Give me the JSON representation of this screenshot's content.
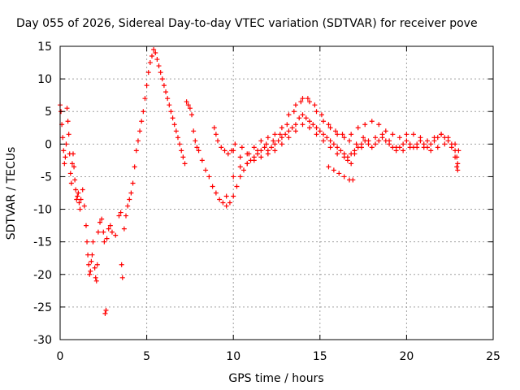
{
  "chart_data": {
    "type": "scatter",
    "title": "Day 055 of 2026, Sidereal Day-to-day VTEC variation (SDTVAR) for receiver pove",
    "xlabel": "GPS time / hours",
    "ylabel": "SDTVAR / TECUs",
    "xlim": [
      0,
      25
    ],
    "ylim": [
      -30,
      15
    ],
    "x_ticks": [
      0,
      5,
      10,
      15,
      20,
      25
    ],
    "y_ticks": [
      -30,
      -25,
      -20,
      -15,
      -10,
      -5,
      0,
      5,
      10,
      15
    ],
    "x_tick_labels": [
      "0",
      "5",
      "10",
      "15",
      "20",
      "25"
    ],
    "y_tick_labels": [
      "-30",
      "-25",
      "-20",
      "-15",
      "-10",
      "-5",
      "0",
      "5",
      "10",
      "15"
    ],
    "grid": true,
    "marker": "plus",
    "color": "#ff0000",
    "series": [
      {
        "name": "SDTVAR",
        "points": [
          [
            0.0,
            6.0
          ],
          [
            0.05,
            5.0
          ],
          [
            0.1,
            3.0
          ],
          [
            0.15,
            1.0
          ],
          [
            0.2,
            -1.0
          ],
          [
            0.25,
            -3.0
          ],
          [
            0.3,
            -2.0
          ],
          [
            0.35,
            0.0
          ],
          [
            0.4,
            5.5
          ],
          [
            0.45,
            3.5
          ],
          [
            0.5,
            1.5
          ],
          [
            0.55,
            -1.5
          ],
          [
            0.6,
            -4.5
          ],
          [
            0.65,
            -6.0
          ],
          [
            0.7,
            -3.0
          ],
          [
            0.75,
            -1.5
          ],
          [
            0.8,
            -3.5
          ],
          [
            0.85,
            -5.5
          ],
          [
            0.9,
            -7.0
          ],
          [
            0.95,
            -8.5
          ],
          [
            1.0,
            -8.0
          ],
          [
            1.05,
            -7.5
          ],
          [
            1.1,
            -9.0
          ],
          [
            1.15,
            -10.0
          ],
          [
            1.2,
            -8.5
          ],
          [
            1.3,
            -7.0
          ],
          [
            1.4,
            -9.5
          ],
          [
            1.5,
            -12.5
          ],
          [
            1.55,
            -15.0
          ],
          [
            1.6,
            -17.0
          ],
          [
            1.65,
            -18.5
          ],
          [
            1.7,
            -20.0
          ],
          [
            1.75,
            -19.5
          ],
          [
            1.8,
            -18.0
          ],
          [
            1.85,
            -17.0
          ],
          [
            1.9,
            -15.0
          ],
          [
            2.0,
            -19.0
          ],
          [
            2.05,
            -20.5
          ],
          [
            2.1,
            -21.0
          ],
          [
            2.15,
            -18.5
          ],
          [
            2.2,
            -13.5
          ],
          [
            2.3,
            -12.0
          ],
          [
            2.4,
            -11.5
          ],
          [
            2.5,
            -13.5
          ],
          [
            2.55,
            -15.0
          ],
          [
            2.6,
            -26.0
          ],
          [
            2.65,
            -25.5
          ],
          [
            2.7,
            -14.5
          ],
          [
            2.8,
            -13.0
          ],
          [
            2.9,
            -12.5
          ],
          [
            3.0,
            -13.5
          ],
          [
            3.2,
            -14.0
          ],
          [
            3.4,
            -11.0
          ],
          [
            3.5,
            -10.5
          ],
          [
            3.55,
            -18.5
          ],
          [
            3.6,
            -20.5
          ],
          [
            3.7,
            -13.0
          ],
          [
            3.8,
            -11.0
          ],
          [
            3.9,
            -9.5
          ],
          [
            4.0,
            -8.5
          ],
          [
            4.1,
            -7.5
          ],
          [
            4.2,
            -6.0
          ],
          [
            4.3,
            -3.5
          ],
          [
            4.4,
            -1.0
          ],
          [
            4.5,
            0.5
          ],
          [
            4.6,
            2.0
          ],
          [
            4.7,
            3.5
          ],
          [
            4.8,
            5.0
          ],
          [
            4.9,
            7.0
          ],
          [
            5.0,
            9.0
          ],
          [
            5.1,
            11.0
          ],
          [
            5.2,
            12.5
          ],
          [
            5.3,
            13.5
          ],
          [
            5.4,
            14.5
          ],
          [
            5.5,
            14.0
          ],
          [
            5.6,
            13.0
          ],
          [
            5.7,
            12.0
          ],
          [
            5.8,
            11.0
          ],
          [
            5.9,
            10.0
          ],
          [
            6.0,
            9.0
          ],
          [
            6.1,
            8.0
          ],
          [
            6.2,
            7.0
          ],
          [
            6.3,
            6.0
          ],
          [
            6.4,
            5.0
          ],
          [
            6.5,
            4.0
          ],
          [
            6.6,
            3.0
          ],
          [
            6.7,
            2.0
          ],
          [
            6.8,
            1.0
          ],
          [
            6.9,
            0.0
          ],
          [
            7.0,
            -1.0
          ],
          [
            7.1,
            -2.0
          ],
          [
            7.2,
            -3.0
          ],
          [
            7.3,
            6.5
          ],
          [
            7.4,
            6.0
          ],
          [
            7.5,
            5.5
          ],
          [
            7.6,
            4.5
          ],
          [
            7.7,
            2.0
          ],
          [
            7.8,
            0.5
          ],
          [
            7.9,
            -0.5
          ],
          [
            8.0,
            -1.0
          ],
          [
            8.2,
            -2.5
          ],
          [
            8.4,
            -4.0
          ],
          [
            8.6,
            -5.0
          ],
          [
            8.8,
            -6.5
          ],
          [
            9.0,
            -7.5
          ],
          [
            9.2,
            -8.5
          ],
          [
            9.4,
            -9.0
          ],
          [
            9.6,
            -9.5
          ],
          [
            9.8,
            -9.0
          ],
          [
            10.0,
            -8.0
          ],
          [
            10.2,
            -6.5
          ],
          [
            10.4,
            -5.0
          ],
          [
            10.6,
            -4.0
          ],
          [
            10.8,
            -3.0
          ],
          [
            11.0,
            -2.5
          ],
          [
            11.2,
            -2.0
          ],
          [
            11.4,
            -1.5
          ],
          [
            11.6,
            -1.0
          ],
          [
            11.8,
            -0.5
          ],
          [
            12.0,
            -1.0
          ],
          [
            12.2,
            -0.5
          ],
          [
            12.4,
            0.0
          ],
          [
            12.6,
            0.5
          ],
          [
            12.8,
            1.0
          ],
          [
            13.0,
            1.5
          ],
          [
            13.2,
            2.0
          ],
          [
            13.4,
            2.5
          ],
          [
            13.6,
            3.0
          ],
          [
            13.8,
            4.0
          ],
          [
            14.0,
            4.5
          ],
          [
            14.2,
            4.0
          ],
          [
            14.4,
            3.5
          ],
          [
            14.6,
            3.0
          ],
          [
            14.8,
            2.5
          ],
          [
            15.0,
            2.0
          ],
          [
            15.2,
            1.5
          ],
          [
            15.4,
            1.0
          ],
          [
            15.6,
            0.5
          ],
          [
            15.8,
            0.0
          ],
          [
            16.0,
            -0.5
          ],
          [
            16.2,
            -1.0
          ],
          [
            16.4,
            -1.5
          ],
          [
            16.6,
            -2.0
          ],
          [
            16.8,
            -1.5
          ],
          [
            17.0,
            -1.0
          ],
          [
            17.2,
            -0.5
          ],
          [
            17.4,
            0.0
          ],
          [
            17.6,
            0.5
          ],
          [
            17.8,
            0.0
          ],
          [
            18.0,
            -0.5
          ],
          [
            18.2,
            0.0
          ],
          [
            18.4,
            0.5
          ],
          [
            18.6,
            1.0
          ],
          [
            18.8,
            0.5
          ],
          [
            19.0,
            0.0
          ],
          [
            19.2,
            -0.5
          ],
          [
            19.4,
            -1.0
          ],
          [
            19.6,
            -0.5
          ],
          [
            19.8,
            0.0
          ],
          [
            20.0,
            0.5
          ],
          [
            20.2,
            0.0
          ],
          [
            20.4,
            -0.5
          ],
          [
            20.6,
            0.0
          ],
          [
            20.8,
            0.5
          ],
          [
            21.0,
            0.0
          ],
          [
            21.2,
            -0.5
          ],
          [
            21.4,
            0.0
          ],
          [
            21.6,
            0.5
          ],
          [
            21.8,
            1.0
          ],
          [
            22.0,
            1.5
          ],
          [
            22.2,
            1.0
          ],
          [
            22.4,
            0.5
          ],
          [
            22.6,
            0.0
          ],
          [
            22.8,
            -1.0
          ],
          [
            22.9,
            -2.0
          ],
          [
            22.95,
            -3.0
          ],
          [
            10.0,
            -1.0
          ],
          [
            10.4,
            -2.0
          ],
          [
            10.8,
            -1.5
          ],
          [
            11.2,
            -0.5
          ],
          [
            11.6,
            0.5
          ],
          [
            12.0,
            1.0
          ],
          [
            12.4,
            1.5
          ],
          [
            12.8,
            2.5
          ],
          [
            13.2,
            4.5
          ],
          [
            13.6,
            6.0
          ],
          [
            14.0,
            7.0
          ],
          [
            14.4,
            6.5
          ],
          [
            14.8,
            5.0
          ],
          [
            15.2,
            3.5
          ],
          [
            15.6,
            2.5
          ],
          [
            16.0,
            1.5
          ],
          [
            16.4,
            1.0
          ],
          [
            16.8,
            1.5
          ],
          [
            17.2,
            2.5
          ],
          [
            17.6,
            3.0
          ],
          [
            18.0,
            3.5
          ],
          [
            18.4,
            3.0
          ],
          [
            18.8,
            2.0
          ],
          [
            19.2,
            1.5
          ],
          [
            19.6,
            1.0
          ],
          [
            20.0,
            1.5
          ],
          [
            20.4,
            1.5
          ],
          [
            20.8,
            1.0
          ],
          [
            21.2,
            0.5
          ],
          [
            21.6,
            1.0
          ],
          [
            22.0,
            1.5
          ],
          [
            22.4,
            1.0
          ],
          [
            22.8,
            0.0
          ],
          [
            23.0,
            -1.0
          ],
          [
            9.6,
            -8.0
          ],
          [
            10.0,
            -5.0
          ],
          [
            10.4,
            -3.5
          ],
          [
            10.8,
            -3.0
          ],
          [
            11.2,
            -2.5
          ],
          [
            11.6,
            -2.0
          ],
          [
            12.0,
            -1.5
          ],
          [
            12.4,
            -1.0
          ],
          [
            12.8,
            0.0
          ],
          [
            13.2,
            1.0
          ],
          [
            13.6,
            2.0
          ],
          [
            14.0,
            3.0
          ],
          [
            14.4,
            2.5
          ],
          [
            14.8,
            1.5
          ],
          [
            15.2,
            0.5
          ],
          [
            15.6,
            -0.5
          ],
          [
            16.0,
            -1.5
          ],
          [
            16.4,
            -2.0
          ],
          [
            16.6,
            -2.5
          ],
          [
            16.8,
            -3.0
          ],
          [
            17.0,
            -1.5
          ],
          [
            17.4,
            -0.5
          ],
          [
            17.8,
            0.5
          ],
          [
            18.2,
            1.0
          ],
          [
            18.6,
            1.5
          ],
          [
            19.0,
            0.5
          ],
          [
            19.4,
            -0.5
          ],
          [
            19.8,
            -1.0
          ],
          [
            20.2,
            -0.5
          ],
          [
            20.6,
            -0.5
          ],
          [
            21.0,
            -0.5
          ],
          [
            21.4,
            -1.0
          ],
          [
            21.8,
            -0.5
          ],
          [
            22.2,
            0.0
          ],
          [
            22.6,
            -0.5
          ],
          [
            22.8,
            -2.0
          ],
          [
            22.9,
            -3.5
          ],
          [
            22.95,
            -4.0
          ],
          [
            15.5,
            -3.5
          ],
          [
            15.8,
            -4.0
          ],
          [
            16.1,
            -4.5
          ],
          [
            16.4,
            -5.0
          ],
          [
            16.7,
            -5.5
          ],
          [
            16.9,
            -5.5
          ],
          [
            8.9,
            2.5
          ],
          [
            9.0,
            1.5
          ],
          [
            9.1,
            0.5
          ],
          [
            9.3,
            -0.5
          ],
          [
            9.5,
            -1.0
          ],
          [
            9.7,
            -1.5
          ],
          [
            9.9,
            -1.0
          ],
          [
            10.1,
            0.0
          ],
          [
            10.5,
            -0.5
          ],
          [
            10.9,
            -1.5
          ],
          [
            11.4,
            -1.0
          ],
          [
            11.9,
            0.0
          ],
          [
            12.3,
            0.5
          ],
          [
            12.7,
            1.5
          ],
          [
            13.1,
            3.0
          ],
          [
            13.5,
            5.0
          ],
          [
            13.9,
            6.5
          ],
          [
            14.3,
            7.0
          ],
          [
            14.7,
            6.0
          ],
          [
            15.1,
            4.5
          ],
          [
            15.5,
            3.0
          ],
          [
            15.9,
            2.0
          ],
          [
            16.3,
            1.5
          ],
          [
            16.7,
            0.5
          ],
          [
            17.1,
            0.0
          ],
          [
            17.5,
            1.0
          ]
        ]
      }
    ]
  }
}
